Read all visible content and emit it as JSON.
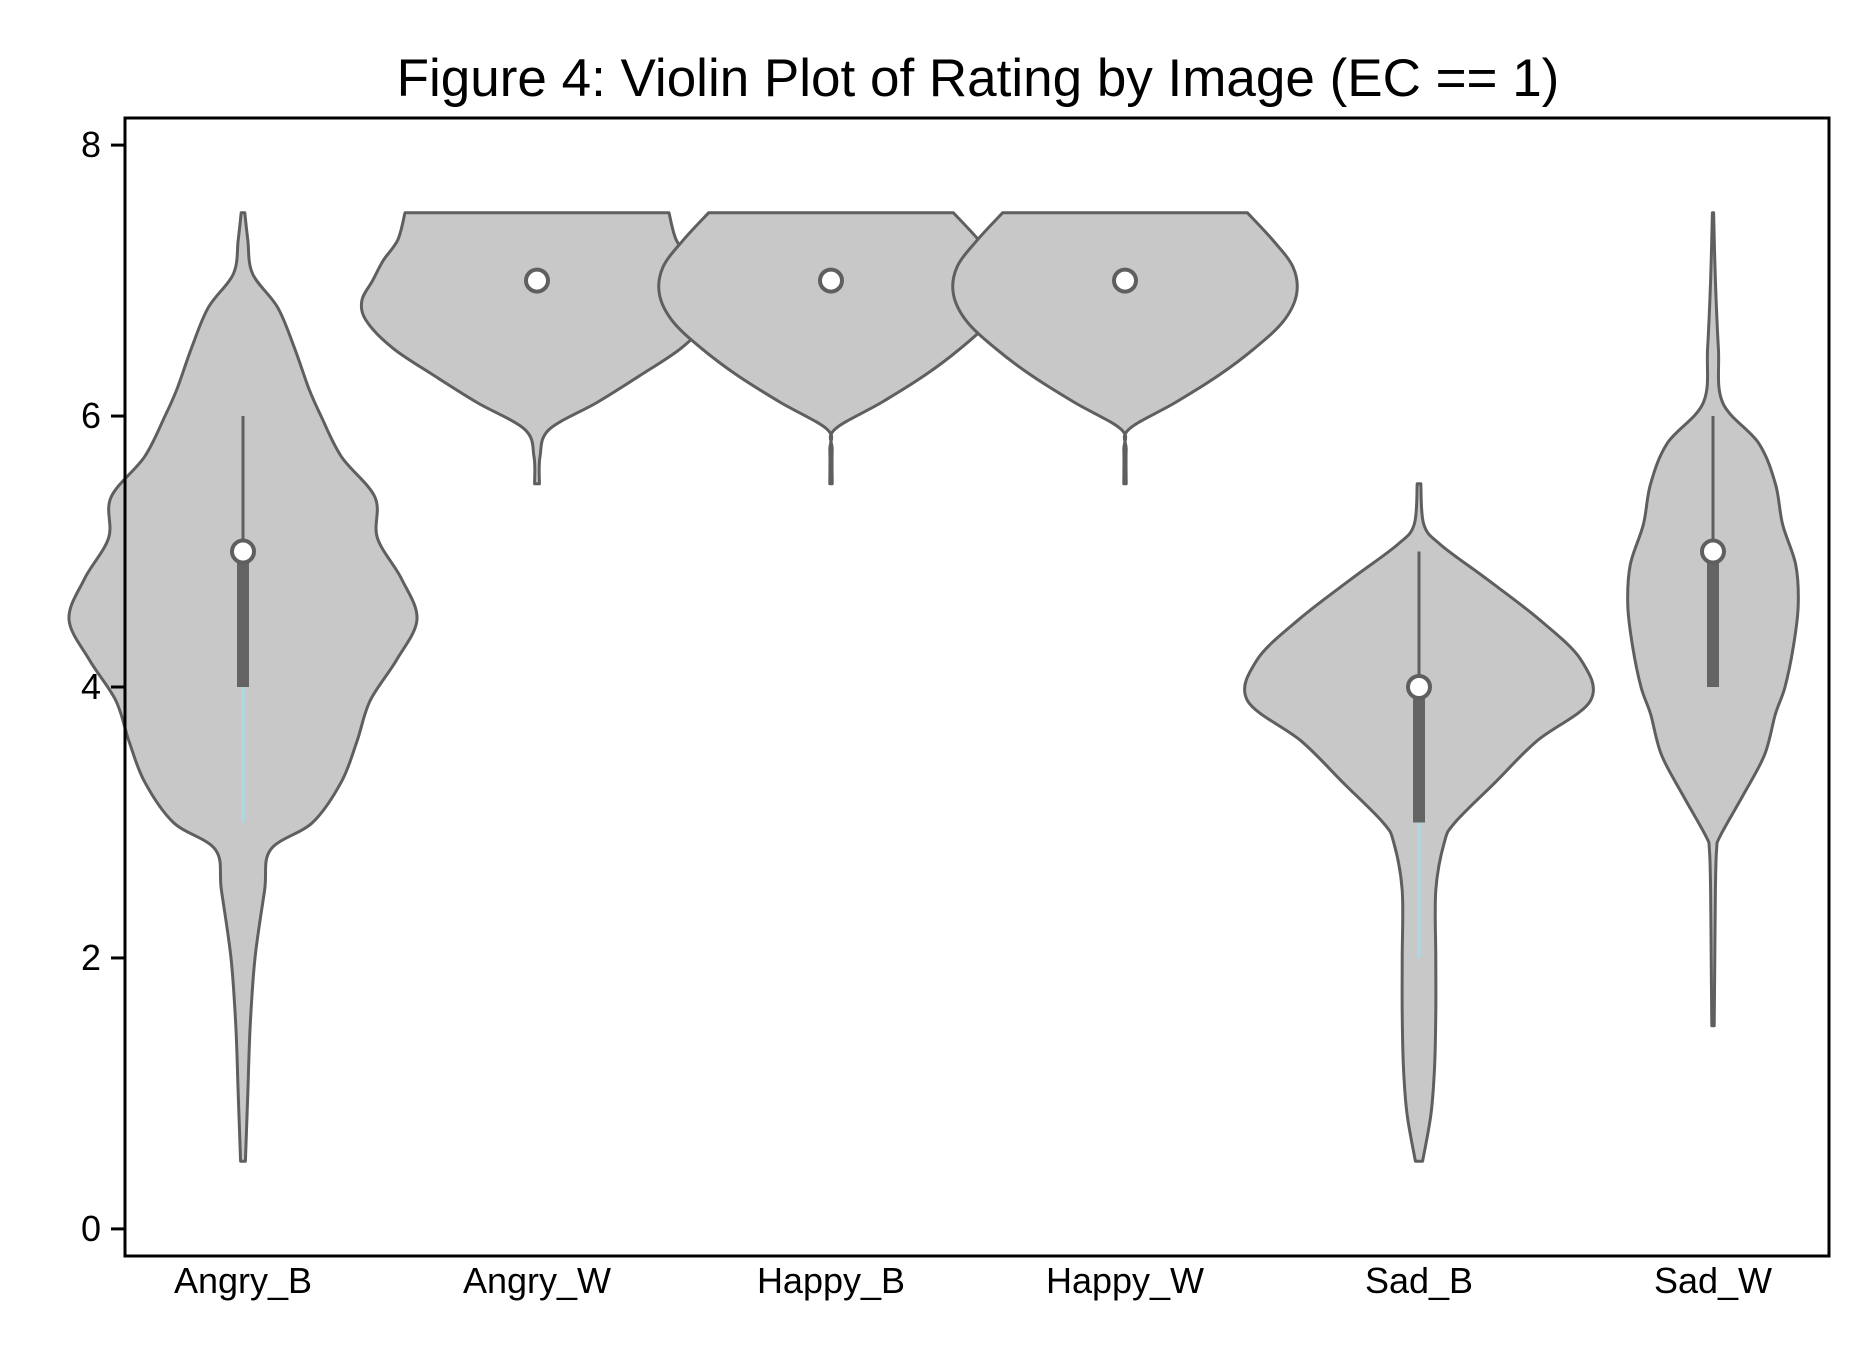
{
  "chart_data": {
    "type": "violin",
    "title": "Figure 4: Violin Plot of Rating by Image (EC == 1)",
    "xlabel": "",
    "ylabel": "",
    "ylim": [
      -0.2,
      8.2
    ],
    "yticks": [
      0,
      2,
      4,
      6,
      8
    ],
    "grid": false,
    "legend": "none",
    "categories": [
      "Angry_B",
      "Angry_W",
      "Happy_B",
      "Happy_W",
      "Sad_B",
      "Sad_W"
    ],
    "colors": {
      "violin_fill": "#c8c8c8",
      "violin_edge": "#5f5f5f",
      "box": "#646464",
      "whisker_upper": "#5f5f5f",
      "whisker_lower": "#add8e6",
      "median_marker": "#ffffff"
    },
    "series": [
      {
        "category": "Angry_B",
        "median": 5,
        "q1": 4,
        "q3": 5,
        "whisker_low": 3,
        "whisker_high": 6,
        "range": [
          0.5,
          7.5
        ],
        "density": [
          [
            0.5,
            0.2
          ],
          [
            1.0,
            0.4
          ],
          [
            1.5,
            0.6
          ],
          [
            2.0,
            1.0
          ],
          [
            2.5,
            1.8
          ],
          [
            2.8,
            2.3
          ],
          [
            3.0,
            5.8
          ],
          [
            3.3,
            8.2
          ],
          [
            3.6,
            9.5
          ],
          [
            3.9,
            10.6
          ],
          [
            4.2,
            12.8
          ],
          [
            4.5,
            14.5
          ],
          [
            4.8,
            13.2
          ],
          [
            5.1,
            11.2
          ],
          [
            5.4,
            11.0
          ],
          [
            5.7,
            8.2
          ],
          [
            6.0,
            6.5
          ],
          [
            6.2,
            5.5
          ],
          [
            6.5,
            4.3
          ],
          [
            6.8,
            2.9
          ],
          [
            7.05,
            0.8
          ],
          [
            7.3,
            0.4
          ],
          [
            7.5,
            0.15
          ]
        ]
      },
      {
        "category": "Angry_W",
        "median": 7,
        "q1": 7,
        "q3": 7,
        "whisker_low": 7,
        "whisker_high": 7,
        "range": [
          5.5,
          7.5
        ],
        "density": [
          [
            5.5,
            0.2
          ],
          [
            5.7,
            0.25
          ],
          [
            5.9,
            1.0
          ],
          [
            6.1,
            5.0
          ],
          [
            6.3,
            8.6
          ],
          [
            6.5,
            12.0
          ],
          [
            6.7,
            14.2
          ],
          [
            6.85,
            14.6
          ],
          [
            7.0,
            13.7
          ],
          [
            7.15,
            12.8
          ],
          [
            7.3,
            11.6
          ],
          [
            7.5,
            11.0
          ]
        ]
      },
      {
        "category": "Happy_B",
        "median": 7,
        "q1": 7,
        "q3": 7,
        "whisker_low": 7,
        "whisker_high": 7,
        "range": [
          5.5,
          7.5
        ],
        "density": [
          [
            5.5,
            0.1
          ],
          [
            5.75,
            0.1
          ],
          [
            5.9,
            0.3
          ],
          [
            6.1,
            4.2
          ],
          [
            6.3,
            7.8
          ],
          [
            6.5,
            10.8
          ],
          [
            6.7,
            13.2
          ],
          [
            6.9,
            14.3
          ],
          [
            7.1,
            14.0
          ],
          [
            7.3,
            12.3
          ],
          [
            7.5,
            10.2
          ]
        ]
      },
      {
        "category": "Happy_W",
        "median": 7,
        "q1": 7,
        "q3": 7,
        "whisker_low": 7,
        "whisker_high": 7,
        "range": [
          5.5,
          7.5
        ],
        "density": [
          [
            5.5,
            0.1
          ],
          [
            5.75,
            0.1
          ],
          [
            5.9,
            0.3
          ],
          [
            6.1,
            4.2
          ],
          [
            6.3,
            7.8
          ],
          [
            6.5,
            10.8
          ],
          [
            6.7,
            13.2
          ],
          [
            6.9,
            14.3
          ],
          [
            7.1,
            14.0
          ],
          [
            7.3,
            12.3
          ],
          [
            7.5,
            10.2
          ]
        ]
      },
      {
        "category": "Sad_B",
        "median": 4,
        "q1": 3,
        "q3": 4,
        "whisker_low": 2,
        "whisker_high": 5,
        "range": [
          0.5,
          5.5
        ],
        "density": [
          [
            0.5,
            0.3
          ],
          [
            0.85,
            1.0
          ],
          [
            1.2,
            1.3
          ],
          [
            1.6,
            1.4
          ],
          [
            2.0,
            1.4
          ],
          [
            2.5,
            1.4
          ],
          [
            2.85,
            2.1
          ],
          [
            3.0,
            3.0
          ],
          [
            3.3,
            6.4
          ],
          [
            3.6,
            9.8
          ],
          [
            3.9,
            14.3
          ],
          [
            4.2,
            13.5
          ],
          [
            4.5,
            10.0
          ],
          [
            4.8,
            5.6
          ],
          [
            5.05,
            1.8
          ],
          [
            5.2,
            0.4
          ],
          [
            5.5,
            0.15
          ]
        ]
      },
      {
        "category": "Sad_W",
        "median": 5,
        "q1": 4,
        "q3": 5,
        "whisker_low": 4,
        "whisker_high": 6,
        "range": [
          1.5,
          7.5
        ],
        "density": [
          [
            1.5,
            0.1
          ],
          [
            2.0,
            0.15
          ],
          [
            2.5,
            0.2
          ],
          [
            2.8,
            0.3
          ],
          [
            2.9,
            0.6
          ],
          [
            3.2,
            2.5
          ],
          [
            3.5,
            4.3
          ],
          [
            3.8,
            5.2
          ],
          [
            4.0,
            6.0
          ],
          [
            4.3,
            6.7
          ],
          [
            4.6,
            7.1
          ],
          [
            4.9,
            6.9
          ],
          [
            5.2,
            5.8
          ],
          [
            5.5,
            5.2
          ],
          [
            5.8,
            3.8
          ],
          [
            6.1,
            0.8
          ],
          [
            6.5,
            0.45
          ],
          [
            7.0,
            0.2
          ],
          [
            7.5,
            0.05
          ]
        ]
      }
    ]
  }
}
